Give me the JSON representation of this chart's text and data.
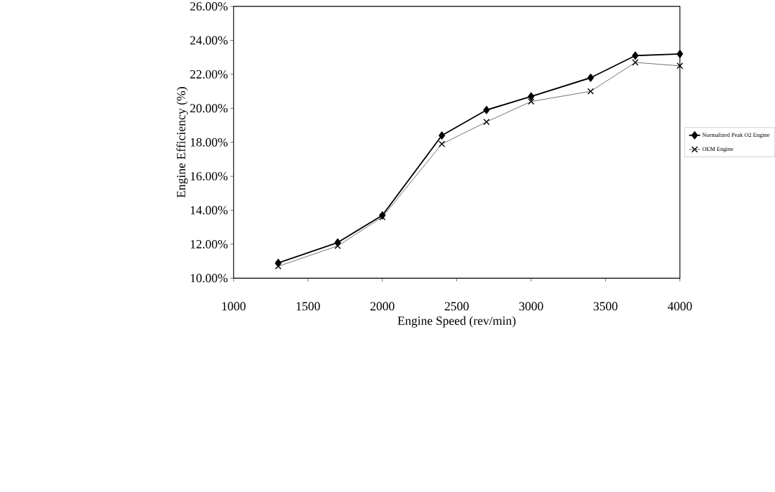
{
  "chart_data": {
    "type": "line",
    "xlabel": "Engine Speed (rev/min)",
    "ylabel": "Engine Efficiency (%)",
    "x": [
      1300,
      1700,
      2000,
      2400,
      2700,
      3000,
      3400,
      3700,
      4000
    ],
    "xlim": [
      1000,
      4000
    ],
    "xticks": [
      1000,
      1500,
      2000,
      2500,
      3000,
      3500,
      4000
    ],
    "ylim": [
      10,
      26
    ],
    "yticks": [
      {
        "value": 10,
        "label": "10.00%"
      },
      {
        "value": 12,
        "label": "12.00%"
      },
      {
        "value": 14,
        "label": "14.00%"
      },
      {
        "value": 16,
        "label": "16.00%"
      },
      {
        "value": 18,
        "label": "18.00%"
      },
      {
        "value": 20,
        "label": "20.00%"
      },
      {
        "value": 22,
        "label": "22.00%"
      },
      {
        "value": 24,
        "label": "24.00%"
      },
      {
        "value": 26,
        "label": "26.00%"
      }
    ],
    "grid": false,
    "legend": "right",
    "line_style": "solid",
    "series": [
      {
        "name": "Normalized Peak O2 Engine",
        "color": "#000000",
        "marker": "diamond",
        "values": [
          10.9,
          12.1,
          13.7,
          18.4,
          19.9,
          20.7,
          21.8,
          23.1,
          23.2
        ]
      },
      {
        "name": "OEM Engine",
        "color": "#000000",
        "marker": "cross",
        "values": [
          10.7,
          11.9,
          13.6,
          17.9,
          19.2,
          20.4,
          21.0,
          22.7,
          22.5
        ]
      }
    ]
  }
}
